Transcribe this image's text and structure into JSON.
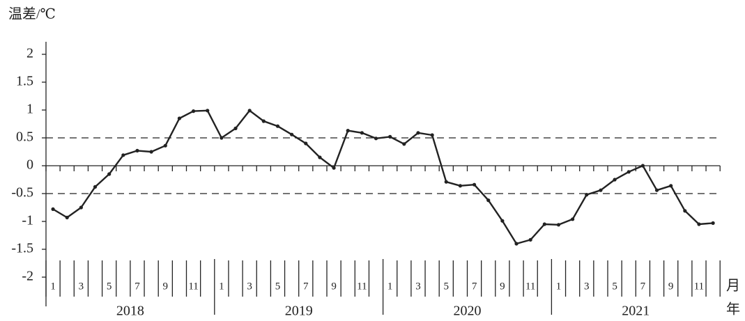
{
  "chart_data": {
    "type": "line",
    "y_label": "温差/℃",
    "x_label": "月",
    "x_group_label": "年",
    "categories": [
      "1",
      null,
      "3",
      null,
      "5",
      null,
      "7",
      null,
      "9",
      null,
      "11",
      null,
      "1",
      null,
      "3",
      null,
      "5",
      null,
      "7",
      null,
      "9",
      null,
      "11",
      null,
      "1",
      null,
      "3",
      null,
      "5",
      null,
      "7",
      null,
      "9",
      null,
      "11",
      null,
      "1",
      null,
      "3",
      null,
      "5",
      null,
      "7",
      null,
      "9",
      null,
      "11",
      null
    ],
    "years": [
      "2018",
      "2019",
      "2020",
      "2021"
    ],
    "values": [
      -0.78,
      -0.93,
      -0.75,
      -0.38,
      -0.15,
      0.19,
      0.27,
      0.25,
      0.36,
      0.85,
      0.98,
      0.99,
      0.5,
      0.67,
      0.99,
      0.8,
      0.71,
      0.56,
      0.4,
      0.15,
      -0.04,
      0.63,
      0.59,
      0.49,
      0.52,
      0.39,
      0.59,
      0.55,
      -0.29,
      -0.36,
      -0.34,
      -0.62,
      -0.99,
      -1.4,
      -1.33,
      -1.05,
      -1.06,
      -0.96,
      -0.52,
      -0.44,
      -0.25,
      -0.11,
      0,
      -0.44,
      -0.36,
      -0.81,
      -1.05,
      -1.03
    ],
    "color": "#222222",
    "ylim": [
      -2.5,
      2.5
    ],
    "yticks": [
      -2,
      -1.5,
      -1,
      -0.5,
      0,
      0.5,
      1,
      1.5,
      2
    ],
    "reference_lines": [
      0.5,
      -0.5
    ]
  }
}
